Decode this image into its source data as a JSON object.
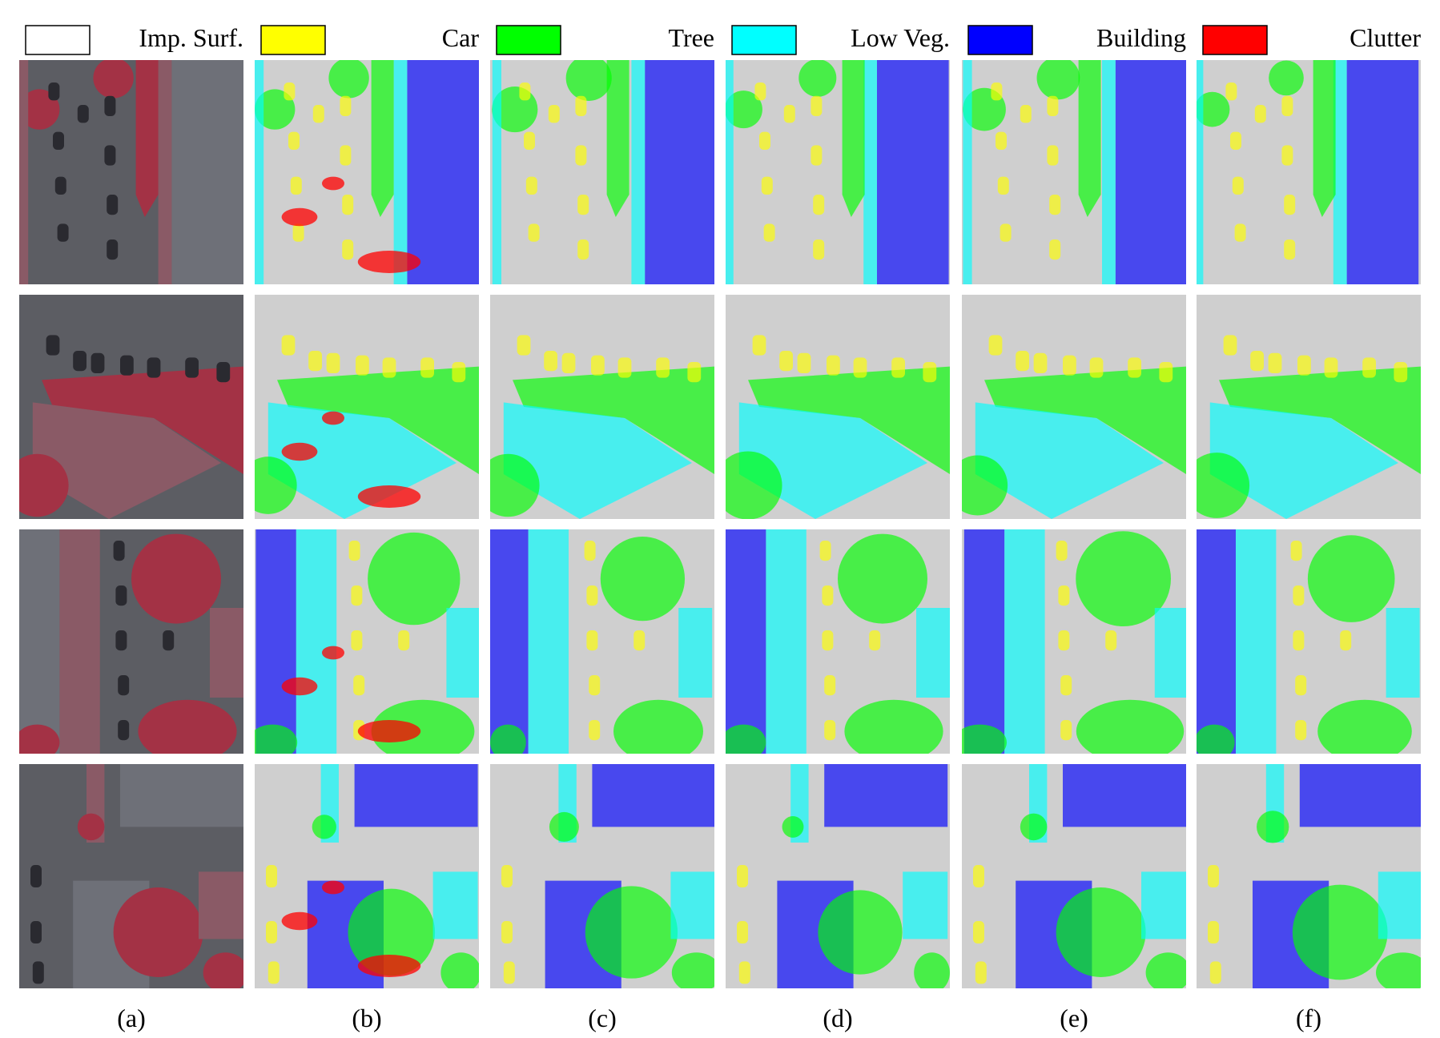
{
  "legend": [
    {
      "label": "Imp. Surf.",
      "color": "#ffffff"
    },
    {
      "label": "Car",
      "color": "#ffff00"
    },
    {
      "label": "Tree",
      "color": "#00ff00"
    },
    {
      "label": "Low Veg.",
      "color": "#00ffff"
    },
    {
      "label": "Building",
      "color": "#0000ff"
    },
    {
      "label": "Clutter",
      "color": "#ff0000"
    }
  ],
  "columns": [
    "(a)",
    "(b)",
    "(c)",
    "(d)",
    "(e)",
    "(f)"
  ]
}
